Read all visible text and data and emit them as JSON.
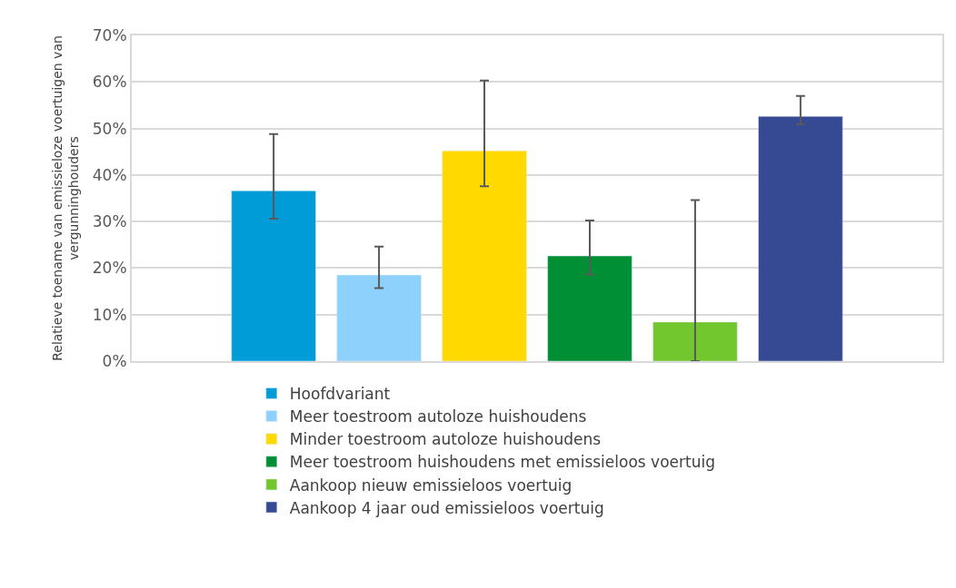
{
  "chart_data": {
    "type": "bar",
    "ylabel": "Relatieve toename van emissieloze voertuigen van vergunninghouders",
    "categories": [
      null
    ],
    "series": [
      {
        "name": "Hoofdvariant",
        "color": "#009cd8",
        "values": [
          36.6
        ],
        "errors": [
          [
            30.6,
            48.8
          ]
        ]
      },
      {
        "name": "Meer toestroom autoloze huishoudens",
        "color": "#8dd1fc",
        "values": [
          18.5
        ],
        "errors": [
          [
            15.7,
            24.6
          ]
        ]
      },
      {
        "name": "Minder toestroom autoloze huishoudens",
        "color": "#ffd900",
        "values": [
          45.2
        ],
        "errors": [
          [
            37.6,
            60.3
          ]
        ]
      },
      {
        "name": "Meer toestroom huishoudens met emissieloos voertuig",
        "color": "#008f34",
        "values": [
          22.6
        ],
        "errors": [
          [
            18.6,
            30.2
          ]
        ]
      },
      {
        "name": "Aankoop nieuw emissieloos voertuig",
        "color": "#72c72f",
        "values": [
          8.4
        ],
        "errors": [
          [
            0,
            34.6
          ]
        ]
      },
      {
        "name": "Aankoop 4 jaar oud emissieloos voertuig",
        "color": "#354a93",
        "values": [
          52.6
        ],
        "errors": [
          [
            50.9,
            57.0
          ]
        ]
      }
    ],
    "ylim": [
      0,
      70
    ],
    "yticks": [
      {
        "value": 0,
        "label": "0%"
      },
      {
        "value": 10,
        "label": "10%"
      },
      {
        "value": 20,
        "label": "20%"
      },
      {
        "value": 30,
        "label": "30%"
      },
      {
        "value": 40,
        "label": "40%"
      },
      {
        "value": 50,
        "label": "50%"
      },
      {
        "value": 60,
        "label": "60%"
      },
      {
        "value": 70,
        "label": "70%"
      }
    ],
    "grid": "y",
    "legend": "bottom"
  }
}
